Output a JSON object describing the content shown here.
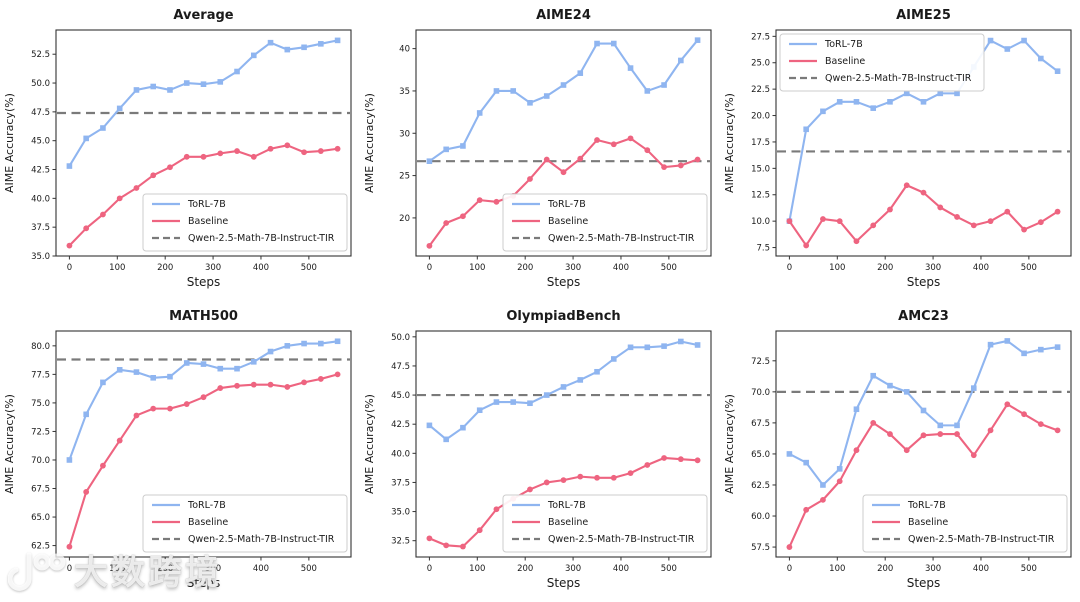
{
  "watermark": {
    "brand_text": "大数跨境",
    "logo": "100-loop-logo"
  },
  "style": {
    "torl_color": "#8fb5f0",
    "baseline_color": "#ee6480",
    "reference_color": "#7a7a7a",
    "spine_color": "#333333",
    "text_color": "#1a1a1a"
  },
  "chart_data": [
    {
      "type": "line",
      "title": "Average",
      "xlabel": "Steps",
      "ylabel": "AIME Accuracy(%)",
      "x": [
        0,
        35,
        70,
        105,
        140,
        175,
        210,
        245,
        280,
        315,
        350,
        385,
        420,
        455,
        490,
        525,
        560
      ],
      "xlim": [
        -28,
        588
      ],
      "ylim": [
        35.0,
        54.6
      ],
      "xticks": [
        "0",
        "100",
        "200",
        "300",
        "400",
        "500"
      ],
      "yticks": [
        "35.0",
        "37.5",
        "40.0",
        "42.5",
        "45.0",
        "47.5",
        "50.0",
        "52.5"
      ],
      "grid": false,
      "legend_position": "lower-right",
      "series": [
        {
          "name": "ToRL-7B",
          "color": "#8fb5f0",
          "marker": "square",
          "values": [
            42.8,
            45.2,
            46.1,
            47.8,
            49.4,
            49.7,
            49.4,
            50.0,
            49.9,
            50.1,
            51.0,
            52.4,
            53.5,
            52.9,
            53.1,
            53.4,
            53.7
          ]
        },
        {
          "name": "Baseline",
          "color": "#ee6480",
          "marker": "circle",
          "values": [
            35.9,
            37.4,
            38.6,
            40.0,
            40.9,
            42.0,
            42.7,
            43.6,
            43.6,
            43.9,
            44.1,
            43.6,
            44.3,
            44.6,
            44.0,
            44.1,
            44.3
          ]
        }
      ],
      "reference_line": {
        "name": "Qwen-2.5-Math-7B-Instruct-TIR",
        "value": 47.4,
        "color": "#7a7a7a",
        "dashed": true
      }
    },
    {
      "type": "line",
      "title": "AIME24",
      "xlabel": "Steps",
      "ylabel": "AIME Accuracy(%)",
      "x": [
        0,
        35,
        70,
        105,
        140,
        175,
        210,
        245,
        280,
        315,
        350,
        385,
        420,
        455,
        490,
        525,
        560
      ],
      "xlim": [
        -28,
        588
      ],
      "ylim": [
        15.5,
        42.2
      ],
      "xticks": [
        "0",
        "100",
        "200",
        "300",
        "400",
        "500"
      ],
      "yticks": [
        "20",
        "25",
        "30",
        "35",
        "40"
      ],
      "grid": false,
      "legend_position": "lower-right",
      "series": [
        {
          "name": "ToRL-7B",
          "color": "#8fb5f0",
          "marker": "square",
          "values": [
            26.7,
            28.1,
            28.5,
            32.4,
            35.0,
            35.0,
            33.6,
            34.4,
            35.7,
            37.1,
            40.6,
            40.6,
            37.7,
            35.0,
            35.7,
            38.6,
            41.0
          ]
        },
        {
          "name": "Baseline",
          "color": "#ee6480",
          "marker": "circle",
          "values": [
            16.7,
            19.4,
            20.2,
            22.1,
            21.9,
            22.6,
            24.6,
            26.9,
            25.4,
            27.0,
            29.2,
            28.7,
            29.4,
            28.0,
            26.0,
            26.2,
            26.9
          ]
        }
      ],
      "reference_line": {
        "name": "Qwen-2.5-Math-7B-Instruct-TIR",
        "value": 26.7,
        "color": "#7a7a7a",
        "dashed": true
      }
    },
    {
      "type": "line",
      "title": "AIME25",
      "xlabel": "Steps",
      "ylabel": "AIME Accuracy(%)",
      "x": [
        0,
        35,
        70,
        105,
        140,
        175,
        210,
        245,
        280,
        315,
        350,
        385,
        420,
        455,
        490,
        525,
        560
      ],
      "xlim": [
        -28,
        588
      ],
      "ylim": [
        6.7,
        28.1
      ],
      "xticks": [
        "0",
        "100",
        "200",
        "300",
        "400",
        "500"
      ],
      "yticks": [
        "7.5",
        "10.0",
        "12.5",
        "15.0",
        "17.5",
        "20.0",
        "22.5",
        "25.0",
        "27.5"
      ],
      "grid": false,
      "legend_position": "upper-left",
      "series": [
        {
          "name": "ToRL-7B",
          "color": "#8fb5f0",
          "marker": "square",
          "values": [
            10.0,
            18.7,
            20.4,
            21.3,
            21.3,
            20.7,
            21.3,
            22.1,
            21.3,
            22.1,
            22.1,
            24.6,
            27.1,
            26.3,
            27.1,
            25.4,
            24.2
          ]
        },
        {
          "name": "Baseline",
          "color": "#ee6480",
          "marker": "circle",
          "values": [
            10.0,
            7.7,
            10.2,
            10.0,
            8.1,
            9.6,
            11.1,
            13.4,
            12.7,
            11.3,
            10.4,
            9.6,
            10.0,
            10.9,
            9.2,
            9.9,
            10.9
          ]
        }
      ],
      "reference_line": {
        "name": "Qwen-2.5-Math-7B-Instruct-TIR",
        "value": 16.6,
        "color": "#7a7a7a",
        "dashed": true
      }
    },
    {
      "type": "line",
      "title": "MATH500",
      "xlabel": "Steps",
      "ylabel": "AIME Accuracy(%)",
      "x": [
        0,
        35,
        70,
        105,
        140,
        175,
        210,
        245,
        280,
        315,
        350,
        385,
        420,
        455,
        490,
        525,
        560
      ],
      "xlim": [
        -28,
        588
      ],
      "ylim": [
        61.5,
        81.3
      ],
      "xticks": [
        "0",
        "100",
        "200",
        "300",
        "400",
        "500"
      ],
      "yticks": [
        "62.5",
        "65.0",
        "67.5",
        "70.0",
        "72.5",
        "75.0",
        "77.5",
        "80.0"
      ],
      "grid": false,
      "legend_position": "lower-right",
      "series": [
        {
          "name": "ToRL-7B",
          "color": "#8fb5f0",
          "marker": "square",
          "values": [
            70.0,
            74.0,
            76.8,
            77.9,
            77.7,
            77.2,
            77.3,
            78.5,
            78.4,
            78.0,
            78.0,
            78.6,
            79.5,
            80.0,
            80.2,
            80.2,
            80.4
          ]
        },
        {
          "name": "Baseline",
          "color": "#ee6480",
          "marker": "circle",
          "values": [
            62.4,
            67.2,
            69.5,
            71.7,
            73.9,
            74.5,
            74.5,
            74.9,
            75.5,
            76.3,
            76.5,
            76.6,
            76.6,
            76.4,
            76.8,
            77.1,
            77.5
          ]
        }
      ],
      "reference_line": {
        "name": "Qwen-2.5-Math-7B-Instruct-TIR",
        "value": 78.8,
        "color": "#7a7a7a",
        "dashed": true
      }
    },
    {
      "type": "line",
      "title": "OlympiadBench",
      "xlabel": "Steps",
      "ylabel": "AIME Accuracy(%)",
      "x": [
        0,
        35,
        70,
        105,
        140,
        175,
        210,
        245,
        280,
        315,
        350,
        385,
        420,
        455,
        490,
        525,
        560
      ],
      "xlim": [
        -28,
        588
      ],
      "ylim": [
        31.1,
        50.5
      ],
      "xticks": [
        "0",
        "100",
        "200",
        "300",
        "400",
        "500"
      ],
      "yticks": [
        "32.5",
        "35.0",
        "37.5",
        "40.0",
        "42.5",
        "45.0",
        "47.5",
        "50.0"
      ],
      "grid": false,
      "legend_position": "lower-right",
      "series": [
        {
          "name": "ToRL-7B",
          "color": "#8fb5f0",
          "marker": "square",
          "values": [
            42.4,
            41.2,
            42.2,
            43.7,
            44.4,
            44.4,
            44.3,
            45.0,
            45.7,
            46.3,
            47.0,
            48.1,
            49.1,
            49.1,
            49.2,
            49.6,
            49.3
          ]
        },
        {
          "name": "Baseline",
          "color": "#ee6480",
          "marker": "circle",
          "values": [
            32.7,
            32.1,
            32.0,
            33.4,
            35.2,
            36.1,
            36.9,
            37.5,
            37.7,
            38.0,
            37.9,
            37.9,
            38.3,
            39.0,
            39.6,
            39.5,
            39.4
          ]
        }
      ],
      "reference_line": {
        "name": "Qwen-2.5-Math-7B-Instruct-TIR",
        "value": 45.0,
        "color": "#7a7a7a",
        "dashed": true
      }
    },
    {
      "type": "line",
      "title": "AMC23",
      "xlabel": "Steps",
      "ylabel": "AIME Accuracy(%)",
      "x": [
        0,
        35,
        70,
        105,
        140,
        175,
        210,
        245,
        280,
        315,
        350,
        385,
        420,
        455,
        490,
        525,
        560
      ],
      "xlim": [
        -28,
        588
      ],
      "ylim": [
        56.7,
        74.9
      ],
      "xticks": [
        "0",
        "100",
        "200",
        "300",
        "400",
        "500"
      ],
      "yticks": [
        "57.5",
        "60.0",
        "62.5",
        "65.0",
        "67.5",
        "70.0",
        "72.5"
      ],
      "grid": false,
      "legend_position": "lower-right",
      "series": [
        {
          "name": "ToRL-7B",
          "color": "#8fb5f0",
          "marker": "square",
          "values": [
            65.0,
            64.3,
            62.5,
            63.8,
            68.6,
            71.3,
            70.5,
            70.0,
            68.5,
            67.3,
            67.3,
            70.3,
            73.8,
            74.1,
            73.1,
            73.4,
            73.6
          ]
        },
        {
          "name": "Baseline",
          "color": "#ee6480",
          "marker": "circle",
          "values": [
            57.5,
            60.5,
            61.3,
            62.8,
            65.3,
            67.5,
            66.6,
            65.3,
            66.5,
            66.6,
            66.6,
            64.9,
            66.9,
            69.0,
            68.2,
            67.4,
            66.9
          ]
        }
      ],
      "reference_line": {
        "name": "Qwen-2.5-Math-7B-Instruct-TIR",
        "value": 70.0,
        "color": "#7a7a7a",
        "dashed": true
      }
    }
  ]
}
